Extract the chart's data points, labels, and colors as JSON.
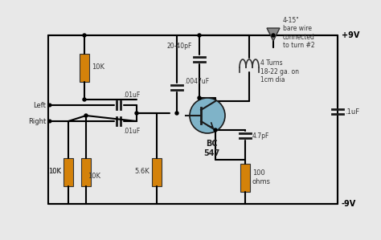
{
  "bg_color": "#e8e8e8",
  "wire_color": "#000000",
  "resistor_color": "#d4820a",
  "capacitor_color": "#1a1a1a",
  "transistor_fill": "#7fb3c8",
  "transistor_outline": "#1a1a1a",
  "component_labels": {
    "R1": "10K",
    "R2": "10K",
    "R3": "10K",
    "R4": "5.6K",
    "R5": "100\nohms",
    "C1": ".01uF",
    "C2": ".01uF",
    "C3": "20-40pF",
    "C4": ".0047uF",
    "C5": "4.7pF",
    "C6": ".1uF",
    "Q1": "BC\n547",
    "L1_label": "4 Turns\n18-22 ga. on\n1cm dia",
    "ant_label": "4-15\"\nbare wire\nconnected\nto turn #2",
    "vpos": "+9V",
    "vneg": "-9V",
    "left_in": "Left",
    "right_in": "Right"
  },
  "figsize": [
    4.74,
    2.99
  ],
  "dpi": 100
}
